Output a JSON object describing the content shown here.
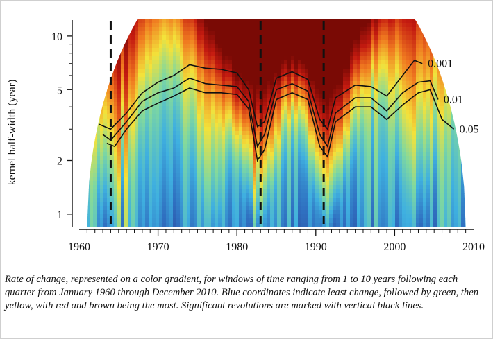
{
  "chart_data": {
    "type": "heatmap",
    "title": "",
    "xlabel": "",
    "ylabel": "kernel half-width  (year)",
    "x_range": [
      1960,
      2010
    ],
    "y_range": [
      0.85,
      12.5
    ],
    "y_scale": "log",
    "x_ticks": [
      "1960",
      "1970",
      "1980",
      "1990",
      "2000",
      "2010"
    ],
    "y_ticks": [
      "1",
      "2",
      "5",
      "10"
    ],
    "color_scale": [
      "#2b3a8f",
      "#2f6fc0",
      "#3fb0e0",
      "#7fd8a0",
      "#f3e23a",
      "#f07a20",
      "#c41a10",
      "#7a0a05"
    ],
    "dome_ymax_at_1990": 12.5,
    "hotspots": [
      {
        "year": 1964,
        "intensity": 0.45
      },
      {
        "year": 1977,
        "intensity": 0.3
      },
      {
        "year": 1982.7,
        "intensity": 0.88
      },
      {
        "year": 1991.5,
        "intensity": 1.0
      },
      {
        "year": 2003,
        "intensity": 0.33
      }
    ],
    "revolutions": [
      {
        "year": 1964
      },
      {
        "year": 1983
      },
      {
        "year": 1991
      }
    ],
    "significance_contours": [
      {
        "label": "0.001",
        "points": [
          [
            1962.5,
            3.2
          ],
          [
            1964,
            3.0
          ],
          [
            1966,
            3.7
          ],
          [
            1968,
            4.8
          ],
          [
            1970,
            5.5
          ],
          [
            1972,
            6.0
          ],
          [
            1974,
            6.9
          ],
          [
            1976,
            6.6
          ],
          [
            1978,
            6.5
          ],
          [
            1980,
            6.2
          ],
          [
            1981.5,
            5.0
          ],
          [
            1982.6,
            3.1
          ],
          [
            1983.5,
            3.3
          ],
          [
            1985,
            5.8
          ],
          [
            1987,
            6.3
          ],
          [
            1989,
            5.7
          ],
          [
            1990.5,
            3.4
          ],
          [
            1991.5,
            3.0
          ],
          [
            1992.5,
            4.5
          ],
          [
            1995,
            5.3
          ],
          [
            1997,
            5.2
          ],
          [
            1999,
            4.6
          ],
          [
            2001,
            6.0
          ],
          [
            2002.5,
            7.3
          ],
          [
            2003.5,
            7.0
          ]
        ]
      },
      {
        "label": "0.01",
        "points": [
          [
            1963,
            2.8
          ],
          [
            1964,
            2.6
          ],
          [
            1966,
            3.3
          ],
          [
            1968,
            4.3
          ],
          [
            1970,
            4.8
          ],
          [
            1972,
            5.1
          ],
          [
            1974,
            5.8
          ],
          [
            1976,
            5.4
          ],
          [
            1978,
            5.3
          ],
          [
            1980,
            5.2
          ],
          [
            1981.5,
            4.3
          ],
          [
            1982.6,
            2.4
          ],
          [
            1983.5,
            2.8
          ],
          [
            1985,
            5.0
          ],
          [
            1987,
            5.4
          ],
          [
            1989,
            4.9
          ],
          [
            1990.5,
            2.8
          ],
          [
            1991.5,
            2.4
          ],
          [
            1992.5,
            3.7
          ],
          [
            1995,
            4.5
          ],
          [
            1997,
            4.5
          ],
          [
            1999,
            3.8
          ],
          [
            2001,
            4.8
          ],
          [
            2003,
            5.5
          ],
          [
            2004.5,
            5.6
          ],
          [
            2005.5,
            4.4
          ]
        ]
      },
      {
        "label": "0.05",
        "points": [
          [
            1963.5,
            2.5
          ],
          [
            1964.5,
            2.4
          ],
          [
            1966,
            3.0
          ],
          [
            1968,
            3.8
          ],
          [
            1970,
            4.2
          ],
          [
            1972,
            4.6
          ],
          [
            1974,
            5.1
          ],
          [
            1976,
            4.8
          ],
          [
            1978,
            4.8
          ],
          [
            1980,
            4.7
          ],
          [
            1981.5,
            3.9
          ],
          [
            1982.6,
            2.0
          ],
          [
            1983.5,
            2.3
          ],
          [
            1985,
            4.4
          ],
          [
            1987,
            4.8
          ],
          [
            1989,
            4.4
          ],
          [
            1990.5,
            2.4
          ],
          [
            1991.5,
            2.1
          ],
          [
            1992.5,
            3.3
          ],
          [
            1995,
            4.0
          ],
          [
            1997,
            4.0
          ],
          [
            1999,
            3.4
          ],
          [
            2001,
            4.1
          ],
          [
            2003,
            4.8
          ],
          [
            2004.5,
            5.0
          ],
          [
            2006,
            3.4
          ],
          [
            2007.5,
            3.0
          ]
        ]
      }
    ]
  },
  "caption": "Rate of change, represented on a color gradient, for windows of time ranging from 1 to 10 years following each quarter from January 1960 through December 2010. Blue coordinates indicate least change, followed by green, then yellow, with red and brown being the most. Significant revolutions are marked with vertical black lines."
}
